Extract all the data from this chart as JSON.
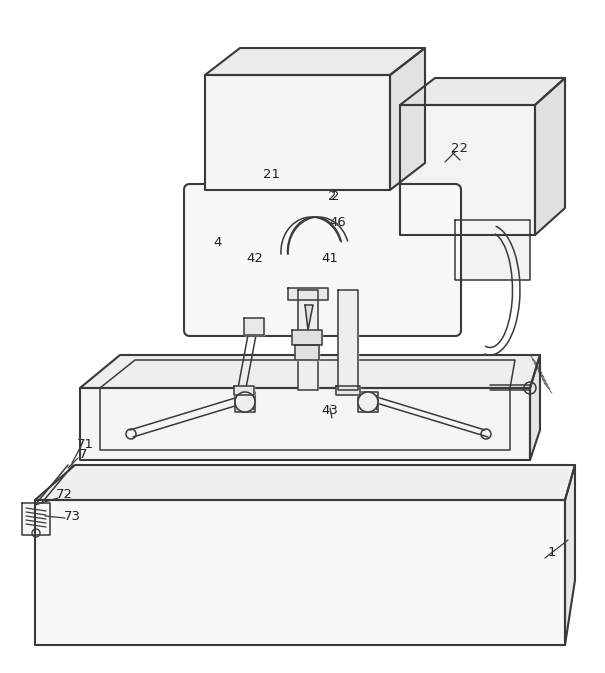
{
  "bg_color": "#ffffff",
  "line_color": "#3a3a3a",
  "lw_main": 1.5,
  "lw_thin": 1.1,
  "figsize": [
    6.05,
    6.73
  ],
  "dpi": 100
}
